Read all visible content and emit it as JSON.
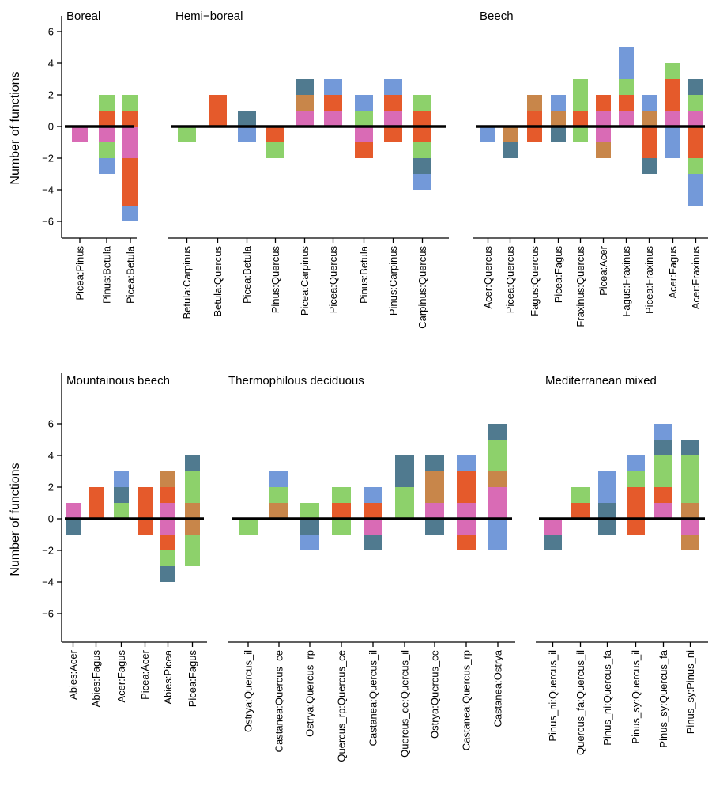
{
  "figure": {
    "ylabel": "Number of functions"
  },
  "colors": {
    "pink": "#d96bb5",
    "orange": "#e55a2b",
    "green": "#8dd16b",
    "blue": "#7399d9",
    "teal": "#507a8f",
    "brown": "#c8864a"
  },
  "chart_data": [
    {
      "type": "bar",
      "title": "Boreal",
      "ylabel": "Number of functions",
      "ylim": [
        -7,
        7
      ],
      "yticks": [
        -6,
        -4,
        -2,
        0,
        2,
        4,
        6
      ],
      "categories": [
        "Picea:Pinus",
        "Pinus:Betula",
        "Picea:Betula"
      ],
      "stacks": [
        {
          "pos": [],
          "neg": [
            "pink"
          ]
        },
        {
          "pos": [
            "orange",
            "green"
          ],
          "neg": [
            "pink",
            "green",
            "blue"
          ]
        },
        {
          "pos": [
            "orange",
            "green"
          ],
          "neg": [
            "pink",
            "pink",
            "orange",
            "orange",
            "orange",
            "blue"
          ]
        }
      ]
    },
    {
      "type": "bar",
      "title": "Hemi−boreal",
      "ylim": [
        -7,
        7
      ],
      "categories": [
        "Betula:Carpinus",
        "Betula:Quercus",
        "Picea:Betula",
        "Pinus:Quercus",
        "Picea:Carpinus",
        "Picea:Quercus",
        "Pinus:Betula",
        "Pinus:Carpinus",
        "Carpinus:Quercus"
      ],
      "stacks": [
        {
          "pos": [],
          "neg": [
            "green"
          ]
        },
        {
          "pos": [
            "orange",
            "orange"
          ],
          "neg": []
        },
        {
          "pos": [
            "teal"
          ],
          "neg": [
            "blue"
          ]
        },
        {
          "pos": [],
          "neg": [
            "orange",
            "green"
          ]
        },
        {
          "pos": [
            "pink",
            "brown",
            "teal"
          ],
          "neg": []
        },
        {
          "pos": [
            "pink",
            "orange",
            "blue"
          ],
          "neg": []
        },
        {
          "pos": [
            "green",
            "blue"
          ],
          "neg": [
            "pink",
            "orange"
          ]
        },
        {
          "pos": [
            "pink",
            "orange",
            "blue"
          ],
          "neg": [
            "orange"
          ]
        },
        {
          "pos": [
            "orange",
            "green"
          ],
          "neg": [
            "orange",
            "green",
            "teal",
            "blue"
          ]
        }
      ]
    },
    {
      "type": "bar",
      "title": "Beech",
      "ylim": [
        -7,
        7
      ],
      "categories": [
        "Acer:Quercus",
        "Picea:Quercus",
        "Fagus:Quercus",
        "Picea:Fagus",
        "Fraxinus:Quercus",
        "Picea:Acer",
        "Fagus:Fraxinus",
        "Picea:Fraxinus",
        "Acer:Fagus",
        "Acer:Fraxinus"
      ],
      "stacks": [
        {
          "pos": [],
          "neg": [
            "blue"
          ]
        },
        {
          "pos": [],
          "neg": [
            "brown",
            "teal"
          ]
        },
        {
          "pos": [
            "orange",
            "brown"
          ],
          "neg": [
            "orange"
          ]
        },
        {
          "pos": [
            "brown",
            "blue"
          ],
          "neg": [
            "teal"
          ]
        },
        {
          "pos": [
            "orange",
            "green",
            "green"
          ],
          "neg": [
            "green"
          ]
        },
        {
          "pos": [
            "pink",
            "orange"
          ],
          "neg": [
            "pink",
            "brown"
          ]
        },
        {
          "pos": [
            "pink",
            "orange",
            "green",
            "blue",
            "blue"
          ],
          "neg": []
        },
        {
          "pos": [
            "brown",
            "blue"
          ],
          "neg": [
            "orange",
            "orange",
            "teal"
          ]
        },
        {
          "pos": [
            "pink",
            "orange",
            "orange",
            "green"
          ],
          "neg": [
            "blue",
            "blue"
          ]
        },
        {
          "pos": [
            "pink",
            "green",
            "teal"
          ],
          "neg": [
            "orange",
            "orange",
            "green",
            "blue",
            "blue"
          ]
        }
      ]
    },
    {
      "type": "bar",
      "title": "Mountainous beech",
      "ylabel": "Number of functions",
      "ylim": [
        -7,
        7
      ],
      "yticks": [
        -6,
        -4,
        -2,
        0,
        2,
        4,
        6
      ],
      "categories": [
        "Abies:Acer",
        "Abies:Fagus",
        "Acer:Fagus",
        "Picea:Acer",
        "Abies:Picea",
        "Picea:Fagus"
      ],
      "stacks": [
        {
          "pos": [
            "pink"
          ],
          "neg": [
            "teal"
          ]
        },
        {
          "pos": [
            "orange",
            "orange"
          ],
          "neg": []
        },
        {
          "pos": [
            "green",
            "teal",
            "blue"
          ],
          "neg": []
        },
        {
          "pos": [
            "orange",
            "orange"
          ],
          "neg": [
            "orange"
          ]
        },
        {
          "pos": [
            "pink",
            "orange",
            "brown"
          ],
          "neg": [
            "pink",
            "orange",
            "green",
            "teal"
          ]
        },
        {
          "pos": [
            "brown",
            "green",
            "green",
            "teal"
          ],
          "neg": [
            "brown",
            "green",
            "green"
          ]
        }
      ]
    },
    {
      "type": "bar",
      "title": "Thermophilous deciduous",
      "ylim": [
        -7,
        7
      ],
      "categories": [
        "Ostrya:Quercus_il",
        "Castanea:Quercus_ce",
        "Ostrya:Quercus_rp",
        "Quercus_rp:Quercus_ce",
        "Castanea:Quercus_il",
        "Quercus_ce:Quercus_il",
        "Ostrya:Quercus_ce",
        "Castanea:Quercus_rp",
        "Castanea:Ostrya"
      ],
      "stacks": [
        {
          "pos": [],
          "neg": [
            "green"
          ]
        },
        {
          "pos": [
            "brown",
            "green",
            "blue"
          ],
          "neg": []
        },
        {
          "pos": [
            "green"
          ],
          "neg": [
            "teal",
            "blue"
          ]
        },
        {
          "pos": [
            "orange",
            "green"
          ],
          "neg": [
            "green"
          ]
        },
        {
          "pos": [
            "orange",
            "blue"
          ],
          "neg": [
            "pink",
            "teal"
          ]
        },
        {
          "pos": [
            "green",
            "green",
            "teal",
            "teal"
          ],
          "neg": []
        },
        {
          "pos": [
            "pink",
            "brown",
            "brown",
            "teal"
          ],
          "neg": [
            "teal"
          ]
        },
        {
          "pos": [
            "pink",
            "orange",
            "orange",
            "blue"
          ],
          "neg": [
            "pink",
            "orange"
          ]
        },
        {
          "pos": [
            "pink",
            "pink",
            "brown",
            "green",
            "green",
            "teal"
          ],
          "neg": [
            "blue",
            "blue"
          ]
        }
      ]
    },
    {
      "type": "bar",
      "title": "Mediterranean mixed",
      "ylim": [
        -7,
        7
      ],
      "categories": [
        "Pinus_ni:Quercus_il",
        "Quercus_fa:Quercus_il",
        "Pinus_ni:Quercus_fa",
        "Pinus_sy:Quercus_il",
        "Pinus_sy:Quercus_fa",
        "Pinus_sy:Pinus_ni"
      ],
      "stacks": [
        {
          "pos": [],
          "neg": [
            "pink",
            "teal"
          ]
        },
        {
          "pos": [
            "orange",
            "green"
          ],
          "neg": []
        },
        {
          "pos": [
            "teal",
            "blue",
            "blue"
          ],
          "neg": [
            "teal"
          ]
        },
        {
          "pos": [
            "orange",
            "orange",
            "green",
            "blue"
          ],
          "neg": [
            "orange"
          ]
        },
        {
          "pos": [
            "pink",
            "orange",
            "green",
            "green",
            "teal",
            "blue"
          ],
          "neg": []
        },
        {
          "pos": [
            "brown",
            "green",
            "green",
            "green",
            "teal"
          ],
          "neg": [
            "pink",
            "brown"
          ]
        }
      ]
    }
  ]
}
